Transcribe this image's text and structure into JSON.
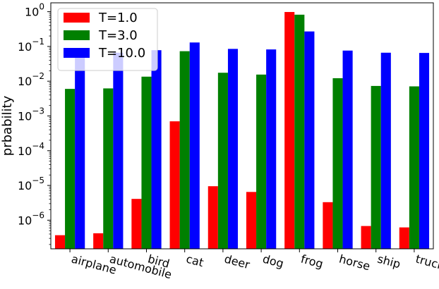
{
  "chart_data": {
    "type": "bar",
    "categories": [
      "airplane",
      "automobile",
      "bird",
      "cat",
      "deer",
      "dog",
      "frog",
      "horse",
      "ship",
      "truck"
    ],
    "series": [
      {
        "name": "T=1.0",
        "color": "#ff0000",
        "values": [
          3.7e-07,
          4.2e-07,
          4.1e-06,
          0.0007,
          9.5e-06,
          6.5e-06,
          0.98,
          3.3e-06,
          6.8e-07,
          6.2e-07
        ]
      },
      {
        "name": "T=3.0",
        "color": "#008000",
        "values": [
          0.006,
          0.0062,
          0.0135,
          0.073,
          0.0175,
          0.0155,
          0.82,
          0.0122,
          0.0073,
          0.0071
        ]
      },
      {
        "name": "T=10.0",
        "color": "#0000ff",
        "values": [
          0.066,
          0.066,
          0.078,
          0.13,
          0.085,
          0.082,
          0.27,
          0.076,
          0.066,
          0.065
        ]
      }
    ],
    "xlabel": "",
    "ylabel": "prbability",
    "yscale": "log",
    "ylim": [
      1.5e-07,
      1.8
    ],
    "y_ticks": [
      {
        "base": "10",
        "exp": "0",
        "value": 1
      },
      {
        "base": "10",
        "exp": "−1",
        "value": 0.1
      },
      {
        "base": "10",
        "exp": "−2",
        "value": 0.01
      },
      {
        "base": "10",
        "exp": "−3",
        "value": 0.001
      },
      {
        "base": "10",
        "exp": "−4",
        "value": 0.0001
      },
      {
        "base": "10",
        "exp": "−5",
        "value": 1e-05
      },
      {
        "base": "10",
        "exp": "−6",
        "value": 1e-06
      }
    ],
    "x_tick_rotation": 15,
    "grid": false,
    "legend": "top-left"
  }
}
